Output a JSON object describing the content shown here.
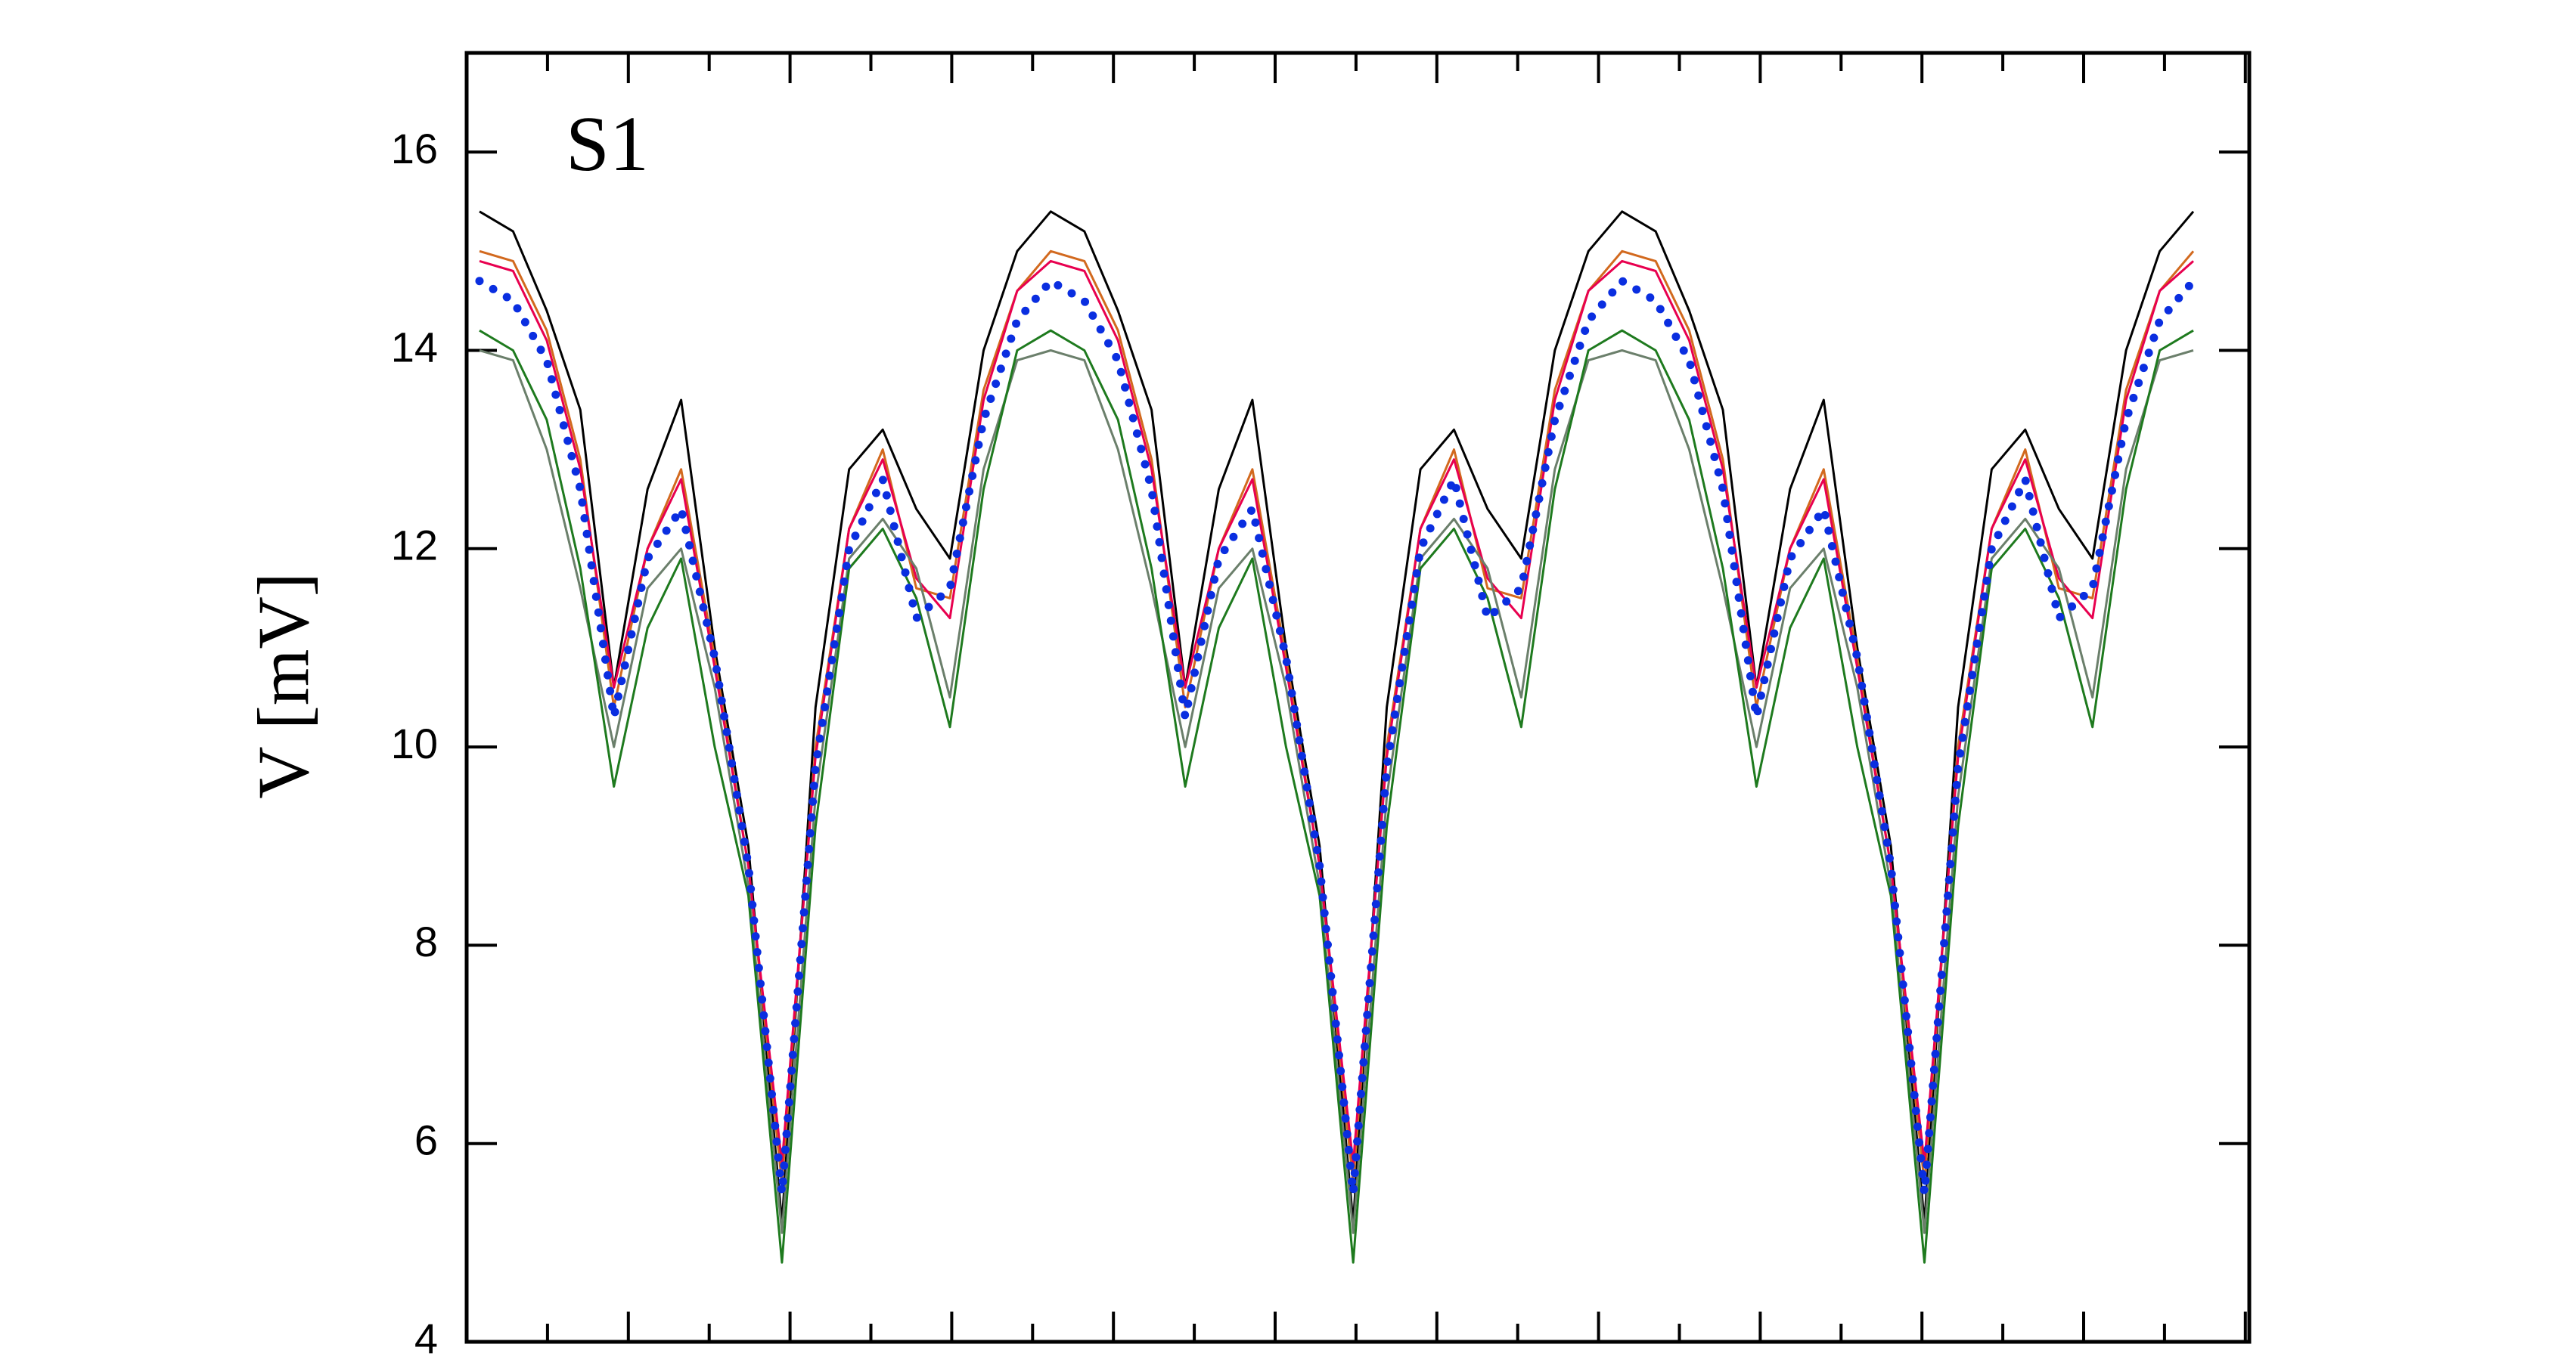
{
  "chart_data": {
    "type": "line",
    "title": "S1",
    "y_label": "V [mV]",
    "ylim": [
      4,
      17
    ],
    "yticks": [
      4,
      6,
      8,
      10,
      12,
      14,
      16
    ],
    "series": [
      {
        "name": "black",
        "color": "#000000",
        "style": "solid",
        "values": [
          15.4,
          15.2,
          14.4,
          13.4,
          10.6,
          12.6,
          13.5,
          11.0,
          9.0,
          5.2,
          10.4,
          12.8,
          13.2,
          12.4,
          11.9,
          14.0,
          15.0,
          15.4,
          15.2,
          14.4,
          13.4,
          10.6,
          12.6,
          13.5,
          11.0,
          9.0,
          5.2,
          10.4,
          12.8,
          13.2,
          12.4,
          11.9,
          14.0,
          15.0,
          15.4,
          15.2,
          14.4,
          13.4,
          10.6,
          12.6,
          13.5,
          11.0,
          9.0,
          5.2,
          10.4,
          12.8,
          13.2,
          12.4,
          11.9,
          14.0,
          15.0,
          15.4
        ]
      },
      {
        "name": "orange",
        "color": "#d2691e",
        "style": "solid",
        "values": [
          15.0,
          14.9,
          14.2,
          12.9,
          10.4,
          12.0,
          12.8,
          10.9,
          8.8,
          5.6,
          10.0,
          12.2,
          13.0,
          11.6,
          11.5,
          13.6,
          14.6,
          15.0,
          14.9,
          14.2,
          12.9,
          10.4,
          12.0,
          12.8,
          10.9,
          8.8,
          5.6,
          10.0,
          12.2,
          13.0,
          11.6,
          11.5,
          13.6,
          14.6,
          15.0,
          14.9,
          14.2,
          12.9,
          10.4,
          12.0,
          12.8,
          10.9,
          8.8,
          5.6,
          10.0,
          12.2,
          13.0,
          11.6,
          11.5,
          13.6,
          14.6,
          15.0
        ]
      },
      {
        "name": "red",
        "color": "#e8004f",
        "style": "solid",
        "values": [
          14.9,
          14.8,
          14.1,
          12.8,
          10.6,
          12.0,
          12.7,
          10.8,
          8.8,
          5.8,
          9.9,
          12.2,
          12.9,
          11.7,
          11.3,
          13.5,
          14.6,
          14.9,
          14.8,
          14.1,
          12.8,
          10.6,
          12.0,
          12.7,
          10.8,
          8.8,
          5.8,
          9.9,
          12.2,
          12.9,
          11.7,
          11.3,
          13.5,
          14.6,
          14.9,
          14.8,
          14.1,
          12.8,
          10.6,
          12.0,
          12.7,
          10.8,
          8.8,
          5.8,
          9.9,
          12.2,
          12.9,
          11.7,
          11.3,
          13.5,
          14.6,
          14.9
        ]
      },
      {
        "name": "gray",
        "color": "#6b7f6b",
        "style": "solid",
        "values": [
          14.0,
          13.9,
          13.0,
          11.6,
          10.0,
          11.6,
          12.0,
          10.6,
          8.6,
          5.1,
          9.5,
          11.9,
          12.3,
          11.8,
          10.5,
          12.8,
          13.9,
          14.0,
          13.9,
          13.0,
          11.6,
          10.0,
          11.6,
          12.0,
          10.6,
          8.6,
          5.1,
          9.5,
          11.9,
          12.3,
          11.8,
          10.5,
          12.8,
          13.9,
          14.0,
          13.9,
          13.0,
          11.6,
          10.0,
          11.6,
          12.0,
          10.6,
          8.6,
          5.1,
          9.5,
          11.9,
          12.3,
          11.8,
          10.5,
          12.8,
          13.9,
          14.0
        ]
      },
      {
        "name": "green",
        "color": "#1e7a1e",
        "style": "solid",
        "values": [
          14.2,
          14.0,
          13.3,
          11.8,
          9.6,
          11.2,
          11.9,
          10.0,
          8.5,
          4.8,
          9.2,
          11.8,
          12.2,
          11.5,
          10.2,
          12.6,
          14.0,
          14.2,
          14.0,
          13.3,
          11.8,
          9.6,
          11.2,
          11.9,
          10.0,
          8.5,
          4.8,
          9.2,
          11.8,
          12.2,
          11.5,
          10.2,
          12.6,
          14.0,
          14.2,
          14.0,
          13.3,
          11.8,
          9.6,
          11.2,
          11.9,
          10.0,
          8.5,
          4.8,
          9.2,
          11.8,
          12.2,
          11.5,
          10.2,
          12.6,
          14.0,
          14.2
        ]
      },
      {
        "name": "blue",
        "color": "#0a2ee0",
        "style": "dotted",
        "values": [
          14.7,
          14.5,
          13.9,
          12.6,
          10.3,
          11.9,
          12.4,
          10.9,
          8.8,
          5.5,
          9.8,
          12.0,
          12.7,
          11.3,
          11.6,
          13.3,
          14.3,
          14.7,
          14.5,
          13.9,
          12.6,
          10.3,
          11.9,
          12.4,
          10.9,
          8.8,
          5.5,
          9.8,
          12.0,
          12.7,
          11.3,
          11.6,
          13.3,
          14.3,
          14.7,
          14.5,
          13.9,
          12.6,
          10.3,
          11.9,
          12.4,
          10.9,
          8.8,
          5.5,
          9.8,
          12.0,
          12.7,
          11.3,
          11.6,
          13.3,
          14.3,
          14.7
        ]
      }
    ]
  }
}
